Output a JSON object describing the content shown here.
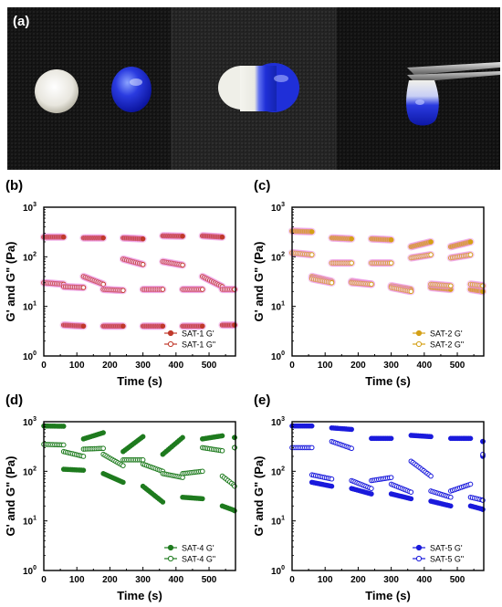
{
  "photo_panel": {
    "label": "(a)"
  },
  "chart_data": [
    {
      "panel_label": "(b)",
      "type": "scatter",
      "xlabel": "Time (s)",
      "ylabel": "G' and G\" (Pa)",
      "xlim": [
        0,
        580
      ],
      "x_ticks": [
        0,
        100,
        200,
        300,
        400,
        500
      ],
      "ylim_log10": [
        0,
        3
      ],
      "y_log_scale": true,
      "y_tick_labels": [
        [
          "10",
          "0"
        ],
        [
          "10",
          "1"
        ],
        [
          "10",
          "2"
        ],
        [
          "10",
          "3"
        ]
      ],
      "legend_position": "bottom-right",
      "color": "#c0392b",
      "glow_color": "#ea8de0",
      "series": [
        {
          "name": "SAT-1 G'",
          "marker": "filled",
          "segments": [
            {
              "x": [
                0,
                60
              ],
              "y": [
                250,
                250
              ]
            },
            {
              "x": [
                60,
                120
              ],
              "y": [
                4.2,
                4.0
              ]
            },
            {
              "x": [
                120,
                180
              ],
              "y": [
                240,
                240
              ]
            },
            {
              "x": [
                180,
                240
              ],
              "y": [
                4.0,
                4.0
              ]
            },
            {
              "x": [
                240,
                300
              ],
              "y": [
                240,
                230
              ]
            },
            {
              "x": [
                300,
                360
              ],
              "y": [
                4.0,
                4.0
              ]
            },
            {
              "x": [
                360,
                420
              ],
              "y": [
                265,
                260
              ]
            },
            {
              "x": [
                420,
                480
              ],
              "y": [
                4.0,
                4.0
              ]
            },
            {
              "x": [
                480,
                540
              ],
              "y": [
                265,
                250
              ]
            },
            {
              "x": [
                540,
                580
              ],
              "y": [
                4.2,
                4.2
              ]
            }
          ]
        },
        {
          "name": "SAT-1 G\"",
          "marker": "open",
          "segments": [
            {
              "x": [
                0,
                60
              ],
              "y": [
                30,
                28
              ]
            },
            {
              "x": [
                60,
                120
              ],
              "y": [
                25,
                24
              ]
            },
            {
              "x": [
                120,
                180
              ],
              "y": [
                40,
                28
              ]
            },
            {
              "x": [
                180,
                240
              ],
              "y": [
                22,
                21
              ]
            },
            {
              "x": [
                240,
                300
              ],
              "y": [
                90,
                70
              ]
            },
            {
              "x": [
                300,
                360
              ],
              "y": [
                22,
                22
              ]
            },
            {
              "x": [
                360,
                420
              ],
              "y": [
                80,
                68
              ]
            },
            {
              "x": [
                420,
                480
              ],
              "y": [
                22,
                22
              ]
            },
            {
              "x": [
                480,
                540
              ],
              "y": [
                40,
                25
              ]
            },
            {
              "x": [
                540,
                580
              ],
              "y": [
                22,
                22
              ]
            }
          ]
        }
      ]
    },
    {
      "panel_label": "(c)",
      "type": "scatter",
      "xlabel": "Time (s)",
      "ylabel": "G' and G\" (Pa)",
      "xlim": [
        0,
        580
      ],
      "x_ticks": [
        0,
        100,
        200,
        300,
        400,
        500
      ],
      "ylim_log10": [
        0,
        3
      ],
      "y_log_scale": true,
      "y_tick_labels": [
        [
          "10",
          "0"
        ],
        [
          "10",
          "1"
        ],
        [
          "10",
          "2"
        ],
        [
          "10",
          "3"
        ]
      ],
      "legend_position": "bottom-right",
      "color": "#d4a017",
      "glow_color": "#ea8de0",
      "series": [
        {
          "name": "SAT-2 G'",
          "marker": "filled",
          "segments": [
            {
              "x": [
                0,
                60
              ],
              "y": [
                330,
                320
              ]
            },
            {
              "x": [
                60,
                120
              ],
              "y": [
                40,
                32
              ]
            },
            {
              "x": [
                120,
                180
              ],
              "y": [
                240,
                230
              ]
            },
            {
              "x": [
                180,
                240
              ],
              "y": [
                32,
                28
              ]
            },
            {
              "x": [
                240,
                300
              ],
              "y": [
                230,
                220
              ]
            },
            {
              "x": [
                300,
                360
              ],
              "y": [
                26,
                22
              ]
            },
            {
              "x": [
                360,
                420
              ],
              "y": [
                160,
                200
              ]
            },
            {
              "x": [
                420,
                480
              ],
              "y": [
                24,
                22
              ]
            },
            {
              "x": [
                480,
                540
              ],
              "y": [
                160,
                200
              ]
            },
            {
              "x": [
                540,
                580
              ],
              "y": [
                22,
                20
              ]
            }
          ]
        },
        {
          "name": "SAT-2 G\"",
          "marker": "open",
          "segments": [
            {
              "x": [
                0,
                60
              ],
              "y": [
                120,
                110
              ]
            },
            {
              "x": [
                60,
                120
              ],
              "y": [
                36,
                30
              ]
            },
            {
              "x": [
                120,
                180
              ],
              "y": [
                75,
                75
              ]
            },
            {
              "x": [
                180,
                240
              ],
              "y": [
                30,
                28
              ]
            },
            {
              "x": [
                240,
                300
              ],
              "y": [
                75,
                75
              ]
            },
            {
              "x": [
                300,
                360
              ],
              "y": [
                24,
                20
              ]
            },
            {
              "x": [
                360,
                420
              ],
              "y": [
                95,
                110
              ]
            },
            {
              "x": [
                420,
                480
              ],
              "y": [
                28,
                26
              ]
            },
            {
              "x": [
                480,
                540
              ],
              "y": [
                95,
                110
              ]
            },
            {
              "x": [
                540,
                580
              ],
              "y": [
                28,
                26
              ]
            }
          ]
        }
      ]
    },
    {
      "panel_label": "(d)",
      "type": "scatter",
      "xlabel": "Time (s)",
      "ylabel": "G' and G\" (Pa)",
      "xlim": [
        0,
        580
      ],
      "x_ticks": [
        0,
        100,
        200,
        300,
        400,
        500
      ],
      "ylim_log10": [
        0,
        3
      ],
      "y_log_scale": true,
      "y_tick_labels": [
        [
          "10",
          "0"
        ],
        [
          "10",
          "1"
        ],
        [
          "10",
          "2"
        ],
        [
          "10",
          "3"
        ]
      ],
      "legend_position": "bottom-right",
      "color": "#1e7b1e",
      "glow_color": null,
      "series": [
        {
          "name": "SAT-4 G'",
          "marker": "filled",
          "segments": [
            {
              "x": [
                0,
                60
              ],
              "y": [
                820,
                810
              ]
            },
            {
              "x": [
                60,
                120
              ],
              "y": [
                110,
                105
              ]
            },
            {
              "x": [
                120,
                180
              ],
              "y": [
                450,
                600
              ]
            },
            {
              "x": [
                180,
                240
              ],
              "y": [
                90,
                60
              ]
            },
            {
              "x": [
                240,
                300
              ],
              "y": [
                250,
                500
              ]
            },
            {
              "x": [
                300,
                360
              ],
              "y": [
                50,
                24
              ]
            },
            {
              "x": [
                360,
                420
              ],
              "y": [
                220,
                480
              ]
            },
            {
              "x": [
                420,
                480
              ],
              "y": [
                30,
                28
              ]
            },
            {
              "x": [
                480,
                540
              ],
              "y": [
                450,
                520
              ]
            },
            {
              "x": [
                540,
                580
              ],
              "y": [
                20,
                16
              ]
            },
            {
              "x": [
                580,
                580
              ],
              "y": [
                480,
                480
              ]
            }
          ]
        },
        {
          "name": "SAT-4 G\"",
          "marker": "open",
          "segments": [
            {
              "x": [
                0,
                60
              ],
              "y": [
                350,
                340
              ]
            },
            {
              "x": [
                60,
                120
              ],
              "y": [
                250,
                200
              ]
            },
            {
              "x": [
                120,
                180
              ],
              "y": [
                280,
                290
              ]
            },
            {
              "x": [
                180,
                240
              ],
              "y": [
                220,
                130
              ]
            },
            {
              "x": [
                240,
                300
              ],
              "y": [
                170,
                170
              ]
            },
            {
              "x": [
                300,
                360
              ],
              "y": [
                140,
                100
              ]
            },
            {
              "x": [
                360,
                420
              ],
              "y": [
                90,
                75
              ]
            },
            {
              "x": [
                420,
                480
              ],
              "y": [
                90,
                100
              ]
            },
            {
              "x": [
                480,
                540
              ],
              "y": [
                300,
                260
              ]
            },
            {
              "x": [
                540,
                580
              ],
              "y": [
                80,
                50
              ]
            },
            {
              "x": [
                580,
                580
              ],
              "y": [
                300,
                300
              ]
            }
          ]
        }
      ]
    },
    {
      "panel_label": "(e)",
      "type": "scatter",
      "xlabel": "Time (s)",
      "ylabel": "G' and G\" (Pa)",
      "xlim": [
        0,
        580
      ],
      "x_ticks": [
        0,
        100,
        200,
        300,
        400,
        500
      ],
      "ylim_log10": [
        0,
        3
      ],
      "y_log_scale": true,
      "y_tick_labels": [
        [
          "10",
          "0"
        ],
        [
          "10",
          "1"
        ],
        [
          "10",
          "2"
        ],
        [
          "10",
          "3"
        ]
      ],
      "legend_position": "bottom-right",
      "color": "#1a1adc",
      "glow_color": null,
      "series": [
        {
          "name": "SAT-5 G'",
          "marker": "filled",
          "segments": [
            {
              "x": [
                0,
                60
              ],
              "y": [
                820,
                820
              ]
            },
            {
              "x": [
                60,
                120
              ],
              "y": [
                60,
                50
              ]
            },
            {
              "x": [
                120,
                180
              ],
              "y": [
                750,
                700
              ]
            },
            {
              "x": [
                180,
                240
              ],
              "y": [
                45,
                35
              ]
            },
            {
              "x": [
                240,
                300
              ],
              "y": [
                460,
                460
              ]
            },
            {
              "x": [
                300,
                360
              ],
              "y": [
                35,
                28
              ]
            },
            {
              "x": [
                360,
                420
              ],
              "y": [
                530,
                500
              ]
            },
            {
              "x": [
                420,
                480
              ],
              "y": [
                25,
                20
              ]
            },
            {
              "x": [
                480,
                540
              ],
              "y": [
                460,
                460
              ]
            },
            {
              "x": [
                540,
                580
              ],
              "y": [
                20,
                17
              ]
            },
            {
              "x": [
                580,
                580
              ],
              "y": [
                400,
                400
              ]
            }
          ]
        },
        {
          "name": "SAT-5 G\"",
          "marker": "open",
          "segments": [
            {
              "x": [
                0,
                60
              ],
              "y": [
                300,
                300
              ]
            },
            {
              "x": [
                60,
                120
              ],
              "y": [
                85,
                70
              ]
            },
            {
              "x": [
                120,
                180
              ],
              "y": [
                400,
                290
              ]
            },
            {
              "x": [
                180,
                240
              ],
              "y": [
                65,
                45
              ]
            },
            {
              "x": [
                240,
                300
              ],
              "y": [
                65,
                75
              ]
            },
            {
              "x": [
                300,
                360
              ],
              "y": [
                55,
                38
              ]
            },
            {
              "x": [
                360,
                420
              ],
              "y": [
                160,
                80
              ]
            },
            {
              "x": [
                420,
                480
              ],
              "y": [
                40,
                30
              ]
            },
            {
              "x": [
                480,
                540
              ],
              "y": [
                40,
                55
              ]
            },
            {
              "x": [
                540,
                580
              ],
              "y": [
                30,
                26
              ]
            },
            {
              "x": [
                580,
                580
              ],
              "y": [
                200,
                220
              ]
            }
          ]
        }
      ]
    }
  ]
}
